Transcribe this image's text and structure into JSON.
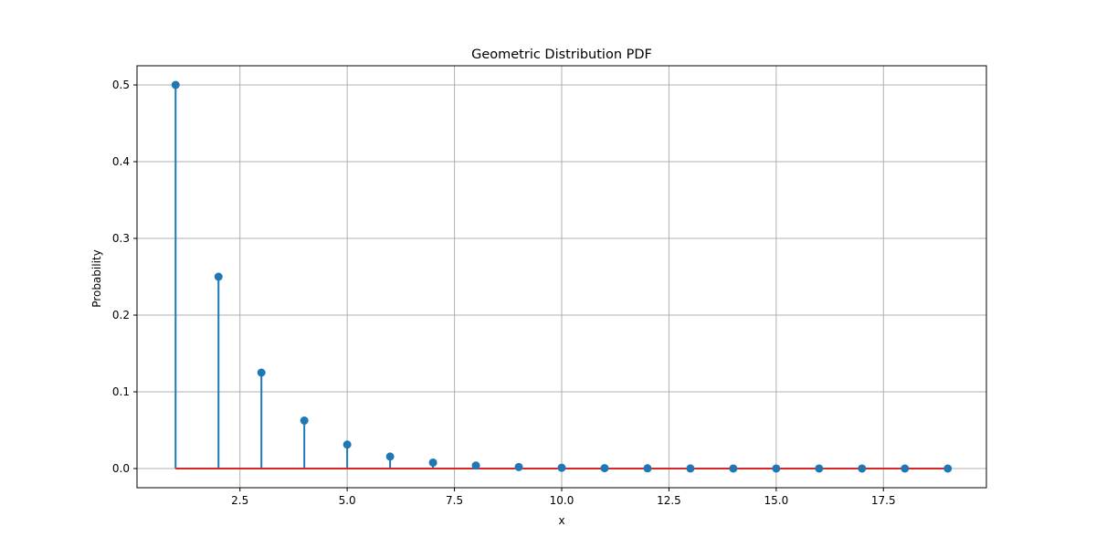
{
  "chart_data": {
    "type": "stem",
    "title": "Geometric Distribution PDF",
    "xlabel": "x",
    "ylabel": "Probability",
    "xlim": [
      0.1,
      19.9
    ],
    "ylim": [
      -0.025,
      0.525
    ],
    "xticks": [
      2.5,
      5.0,
      7.5,
      10.0,
      12.5,
      15.0,
      17.5
    ],
    "xtick_labels": [
      "2.5",
      "5.0",
      "7.5",
      "10.0",
      "12.5",
      "15.0",
      "17.5"
    ],
    "yticks": [
      0.0,
      0.1,
      0.2,
      0.3,
      0.4,
      0.5
    ],
    "ytick_labels": [
      "0.0",
      "0.1",
      "0.2",
      "0.3",
      "0.4",
      "0.5"
    ],
    "grid": true,
    "colors": {
      "stem": "#1f77b4",
      "baseline": "#d62728",
      "grid": "#b0b0b0"
    },
    "series": [
      {
        "x": [
          1,
          2,
          3,
          4,
          5,
          6,
          7,
          8,
          9,
          10,
          11,
          12,
          13,
          14,
          15,
          16,
          17,
          18,
          19
        ],
        "values": [
          0.5,
          0.25,
          0.125,
          0.0625,
          0.03125,
          0.015625,
          0.0078125,
          0.00390625,
          0.001953125,
          0.0009765625,
          0.00048828125,
          0.000244140625,
          0.0001220703125,
          6.103515625e-05,
          3.0517578125e-05,
          1.52587890625e-05,
          7.62939453125e-06,
          3.814697265625e-06,
          1.9073486328125e-06
        ]
      }
    ]
  }
}
